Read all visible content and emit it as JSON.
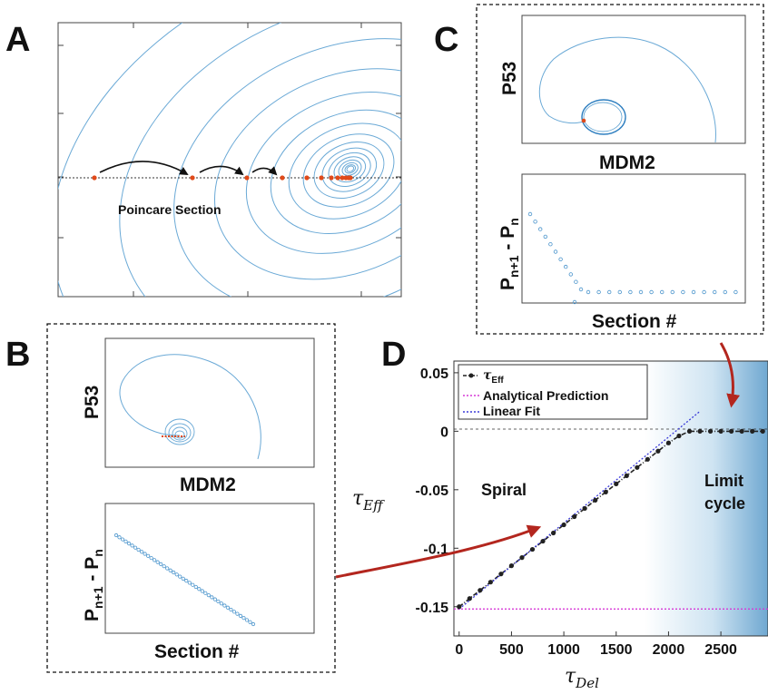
{
  "panels": {
    "A": {
      "label": "A",
      "section_label": "Poincare Section"
    },
    "B": {
      "label": "B",
      "phase": {
        "ylabel": "P53",
        "xlabel": "MDM2"
      },
      "diff": {
        "ylabel_main": "P",
        "ylabel_sub1": "n+1",
        "ylabel_mid": " - P",
        "ylabel_sub2": "n",
        "xlabel": "Section #"
      }
    },
    "C": {
      "label": "C",
      "phase": {
        "ylabel": "P53",
        "xlabel": "MDM2"
      },
      "diff": {
        "ylabel_main": "P",
        "ylabel_sub1": "n+1",
        "ylabel_mid": " - P",
        "ylabel_sub2": "n",
        "xlabel": "Section #"
      }
    },
    "D": {
      "label": "D",
      "ylabel_main": "τ",
      "ylabel_sub": "Eff",
      "xlabel_main": "τ",
      "xlabel_sub": "Del",
      "region_spiral": "Spiral",
      "region_limit_1": "Limit",
      "region_limit_2": "cycle",
      "legend": [
        {
          "name_main": "τ",
          "name_sub": "Eff",
          "color": "#222222",
          "style": "dash-dot-marker"
        },
        {
          "name_main": "Analytical Prediction",
          "name_sub": "",
          "color": "#d63ad6",
          "style": "dotted"
        },
        {
          "name_main": "Linear Fit",
          "name_sub": "",
          "color": "#3a3ad8",
          "style": "dotted"
        }
      ]
    }
  },
  "chart_data": {
    "type": "line",
    "xlim": [
      -50,
      2950
    ],
    "ylim": [
      -0.175,
      0.06
    ],
    "x_ticks": [
      0,
      500,
      1000,
      1500,
      2000,
      2500
    ],
    "x_tick_labels": [
      "0",
      "500",
      "1000",
      "1500",
      "2000",
      "2500"
    ],
    "y_ticks": [
      0.05,
      0,
      -0.05,
      -0.1,
      -0.15
    ],
    "y_tick_labels": [
      "0.05",
      "0",
      "-0.05",
      "-0.1",
      "-0.15"
    ],
    "grid": false,
    "legend_position": "top-left",
    "series": [
      {
        "name": "τEff",
        "color": "#222222",
        "x": [
          0,
          100,
          200,
          300,
          400,
          500,
          600,
          700,
          800,
          900,
          1000,
          1100,
          1200,
          1300,
          1400,
          1500,
          1600,
          1700,
          1800,
          1900,
          2000,
          2100,
          2200,
          2300,
          2400,
          2500,
          2600,
          2700,
          2800,
          2900
        ],
        "values": [
          -0.15,
          -0.143,
          -0.136,
          -0.129,
          -0.122,
          -0.115,
          -0.108,
          -0.101,
          -0.094,
          -0.087,
          -0.08,
          -0.073,
          -0.066,
          -0.059,
          -0.052,
          -0.045,
          -0.038,
          -0.031,
          -0.024,
          -0.017,
          -0.01,
          -0.004,
          0,
          0,
          0,
          0,
          0,
          0,
          0,
          0
        ]
      },
      {
        "name": "Analytical Prediction",
        "color": "#d63ad6",
        "x": [
          -50,
          2950
        ],
        "values": [
          -0.152,
          -0.152
        ]
      },
      {
        "name": "Linear Fit",
        "color": "#3a3ad8",
        "x": [
          0,
          2300
        ],
        "values": [
          -0.152,
          0.017
        ]
      }
    ]
  }
}
